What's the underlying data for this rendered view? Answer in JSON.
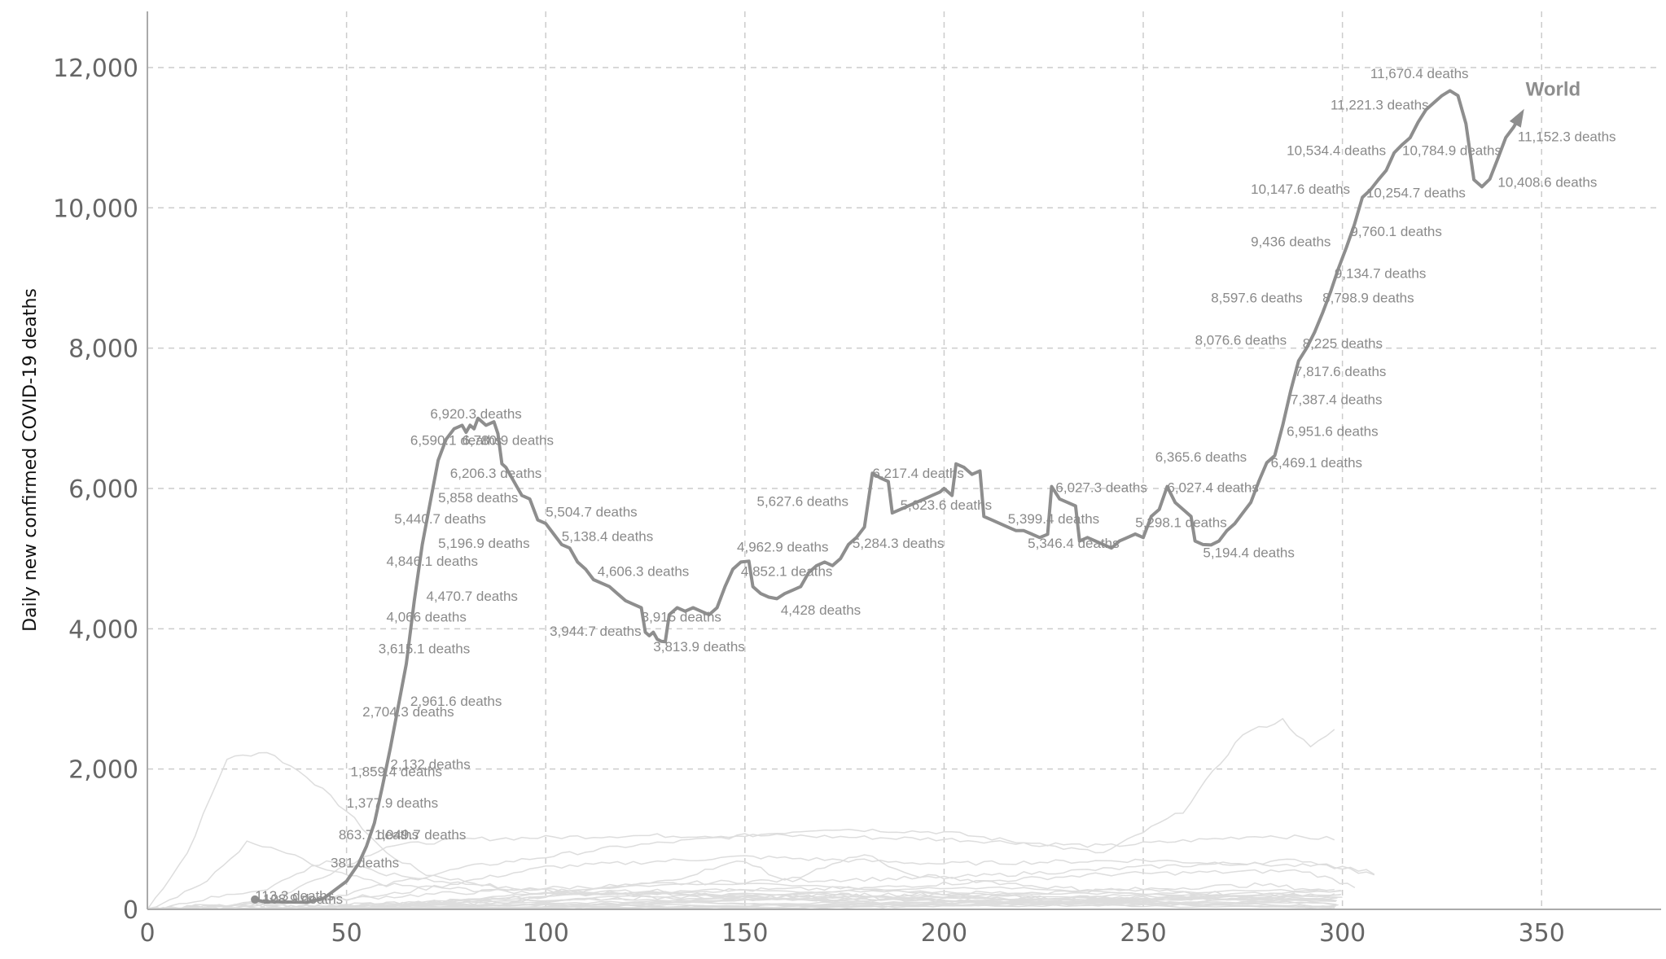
{
  "chart_data": {
    "type": "line",
    "title": "",
    "xlabel": "",
    "ylabel": "Daily new confirmed COVID-19 deaths",
    "xlim": [
      0,
      380
    ],
    "ylim": [
      0,
      12800
    ],
    "x_ticks": [
      0,
      50,
      100,
      150,
      200,
      250,
      300,
      350
    ],
    "x_tick_labels": [
      "0",
      "50",
      "100",
      "150",
      "200",
      "250",
      "300",
      "350"
    ],
    "y_ticks": [
      0,
      2000,
      4000,
      6000,
      8000,
      10000,
      12000
    ],
    "y_tick_labels": [
      "0",
      "2,000",
      "4,000",
      "6,000",
      "8,000",
      "10,000",
      "12,000"
    ],
    "grid": true,
    "series": [
      {
        "name": "World",
        "color": "#8e8e8e",
        "points": [
          [
            27,
            140
          ],
          [
            29,
            110
          ],
          [
            40,
            100
          ],
          [
            44,
            150
          ],
          [
            46,
            230
          ],
          [
            50,
            400
          ],
          [
            53,
            650
          ],
          [
            55,
            900
          ],
          [
            57,
            1230
          ],
          [
            59,
            1750
          ],
          [
            61,
            2300
          ],
          [
            63,
            2900
          ],
          [
            65,
            3500
          ],
          [
            67,
            4400
          ],
          [
            69,
            5200
          ],
          [
            71,
            5800
          ],
          [
            73,
            6400
          ],
          [
            75,
            6700
          ],
          [
            77,
            6850
          ],
          [
            79,
            6900
          ],
          [
            80,
            6800
          ],
          [
            81,
            6900
          ],
          [
            82,
            6850
          ],
          [
            83,
            7000
          ],
          [
            85,
            6900
          ],
          [
            87,
            6950
          ],
          [
            88,
            6780
          ],
          [
            89,
            6350
          ],
          [
            90,
            6300
          ],
          [
            92,
            6100
          ],
          [
            94,
            5900
          ],
          [
            96,
            5850
          ],
          [
            98,
            5550
          ],
          [
            100,
            5500
          ],
          [
            102,
            5350
          ],
          [
            104,
            5200
          ],
          [
            106,
            5150
          ],
          [
            108,
            4950
          ],
          [
            110,
            4850
          ],
          [
            112,
            4700
          ],
          [
            114,
            4650
          ],
          [
            116,
            4600
          ],
          [
            118,
            4500
          ],
          [
            120,
            4400
          ],
          [
            122,
            4350
          ],
          [
            124,
            4300
          ],
          [
            125,
            3950
          ],
          [
            126,
            3900
          ],
          [
            127,
            3950
          ],
          [
            128,
            3850
          ],
          [
            129,
            3820
          ],
          [
            130,
            3814
          ],
          [
            131,
            4200
          ],
          [
            133,
            4300
          ],
          [
            135,
            4250
          ],
          [
            137,
            4300
          ],
          [
            139,
            4250
          ],
          [
            141,
            4200
          ],
          [
            143,
            4300
          ],
          [
            145,
            4600
          ],
          [
            147,
            4850
          ],
          [
            149,
            4950
          ],
          [
            151,
            4963
          ],
          [
            152,
            4600
          ],
          [
            154,
            4500
          ],
          [
            156,
            4450
          ],
          [
            158,
            4428
          ],
          [
            160,
            4500
          ],
          [
            162,
            4550
          ],
          [
            164,
            4600
          ],
          [
            166,
            4800
          ],
          [
            168,
            4900
          ],
          [
            170,
            4950
          ],
          [
            172,
            4900
          ],
          [
            174,
            5000
          ],
          [
            176,
            5200
          ],
          [
            178,
            5300
          ],
          [
            180,
            5450
          ],
          [
            182,
            6217
          ],
          [
            184,
            6150
          ],
          [
            186,
            6100
          ],
          [
            187,
            5650
          ],
          [
            189,
            5700
          ],
          [
            191,
            5750
          ],
          [
            193,
            5800
          ],
          [
            195,
            5850
          ],
          [
            197,
            5900
          ],
          [
            199,
            5950
          ],
          [
            200,
            6000
          ],
          [
            202,
            5900
          ],
          [
            203,
            6350
          ],
          [
            205,
            6300
          ],
          [
            207,
            6200
          ],
          [
            209,
            6250
          ],
          [
            210,
            5600
          ],
          [
            212,
            5550
          ],
          [
            214,
            5500
          ],
          [
            216,
            5450
          ],
          [
            218,
            5400
          ],
          [
            220,
            5399
          ],
          [
            222,
            5350
          ],
          [
            224,
            5300
          ],
          [
            226,
            5346
          ],
          [
            227,
            6027
          ],
          [
            229,
            5850
          ],
          [
            231,
            5800
          ],
          [
            233,
            5750
          ],
          [
            234,
            5250
          ],
          [
            236,
            5300
          ],
          [
            238,
            5250
          ],
          [
            240,
            5200
          ],
          [
            242,
            5150
          ],
          [
            244,
            5250
          ],
          [
            246,
            5300
          ],
          [
            248,
            5350
          ],
          [
            250,
            5300
          ],
          [
            252,
            5600
          ],
          [
            254,
            5700
          ],
          [
            256,
            6027
          ],
          [
            258,
            5800
          ],
          [
            260,
            5700
          ],
          [
            262,
            5600
          ],
          [
            263,
            5250
          ],
          [
            265,
            5200
          ],
          [
            267,
            5194
          ],
          [
            269,
            5250
          ],
          [
            271,
            5400
          ],
          [
            273,
            5500
          ],
          [
            275,
            5650
          ],
          [
            277,
            5800
          ],
          [
            279,
            6100
          ],
          [
            281,
            6366
          ],
          [
            283,
            6469
          ],
          [
            285,
            6900
          ],
          [
            287,
            7387
          ],
          [
            289,
            7818
          ],
          [
            291,
            8000
          ],
          [
            293,
            8225
          ],
          [
            295,
            8500
          ],
          [
            297,
            8800
          ],
          [
            299,
            9135
          ],
          [
            301,
            9436
          ],
          [
            303,
            9760
          ],
          [
            305,
            10148
          ],
          [
            307,
            10255
          ],
          [
            309,
            10400
          ],
          [
            311,
            10534
          ],
          [
            313,
            10785
          ],
          [
            315,
            10900
          ],
          [
            317,
            11000
          ],
          [
            319,
            11221
          ],
          [
            321,
            11400
          ],
          [
            323,
            11500
          ],
          [
            325,
            11600
          ],
          [
            327,
            11670
          ],
          [
            329,
            11600
          ],
          [
            331,
            11200
          ],
          [
            333,
            10400
          ],
          [
            335,
            10300
          ],
          [
            337,
            10409
          ],
          [
            339,
            10700
          ],
          [
            341,
            11000
          ],
          [
            343,
            11152
          ],
          [
            345,
            11350
          ]
        ]
      }
    ],
    "annotations": [
      {
        "text": "113.3 deaths",
        "x": 27,
        "y": 130
      },
      {
        "text": "108.9 deaths",
        "x": 29,
        "y": 80
      },
      {
        "text": "381 deaths",
        "x": 46,
        "y": 600
      },
      {
        "text": "863.7 deaths",
        "x": 48,
        "y": 1000
      },
      {
        "text": "1,049.7 deaths",
        "x": 57,
        "y": 1000
      },
      {
        "text": "1,377.9 deaths",
        "x": 50,
        "y": 1450
      },
      {
        "text": "1,859.4 deaths",
        "x": 51,
        "y": 1900
      },
      {
        "text": "2,132 deaths",
        "x": 61,
        "y": 2000
      },
      {
        "text": "2,704.3 deaths",
        "x": 54,
        "y": 2750
      },
      {
        "text": "2,961.6 deaths",
        "x": 66,
        "y": 2900
      },
      {
        "text": "3,615.1 deaths",
        "x": 58,
        "y": 3650
      },
      {
        "text": "4,066 deaths",
        "x": 60,
        "y": 4100
      },
      {
        "text": "4,470.7 deaths",
        "x": 70,
        "y": 4400
      },
      {
        "text": "4,846.1 deaths",
        "x": 60,
        "y": 4900
      },
      {
        "text": "5,196.9 deaths",
        "x": 73,
        "y": 5150
      },
      {
        "text": "5,440.7 deaths",
        "x": 62,
        "y": 5500
      },
      {
        "text": "5,858 deaths",
        "x": 73,
        "y": 5800
      },
      {
        "text": "6,206.3 deaths",
        "x": 76,
        "y": 6150
      },
      {
        "text": "6,590.1 deaths",
        "x": 66,
        "y": 6620
      },
      {
        "text": "6,780.9 deaths",
        "x": 79,
        "y": 6620
      },
      {
        "text": "6,920.3 deaths",
        "x": 71,
        "y": 7000
      },
      {
        "text": "5,504.7 deaths",
        "x": 100,
        "y": 5600
      },
      {
        "text": "5,138.4 deaths",
        "x": 104,
        "y": 5250
      },
      {
        "text": "4,606.3 deaths",
        "x": 113,
        "y": 4750
      },
      {
        "text": "3,944.7 deaths",
        "x": 101,
        "y": 3900
      },
      {
        "text": "3,915 deaths",
        "x": 124,
        "y": 4100
      },
      {
        "text": "3,813.9 deaths",
        "x": 127,
        "y": 3680
      },
      {
        "text": "4,962.9 deaths",
        "x": 148,
        "y": 5100
      },
      {
        "text": "4,852.1 deaths",
        "x": 149,
        "y": 4750
      },
      {
        "text": "4,428 deaths",
        "x": 159,
        "y": 4200
      },
      {
        "text": "5,627.6 deaths",
        "x": 153,
        "y": 5750
      },
      {
        "text": "5,284.3 deaths",
        "x": 177,
        "y": 5150
      },
      {
        "text": "6,217.4 deaths",
        "x": 182,
        "y": 6150
      },
      {
        "text": "5,623.6 deaths",
        "x": 189,
        "y": 5700
      },
      {
        "text": "5,399.4 deaths",
        "x": 216,
        "y": 5500
      },
      {
        "text": "5,346.4 deaths",
        "x": 221,
        "y": 5150
      },
      {
        "text": "6,027.3 deaths",
        "x": 228,
        "y": 5950
      },
      {
        "text": "6,365.6 deaths",
        "x": 253,
        "y": 6380
      },
      {
        "text": "6,027.4 deaths",
        "x": 256,
        "y": 5950
      },
      {
        "text": "5,298.1 deaths",
        "x": 248,
        "y": 5450
      },
      {
        "text": "5,194.4 deaths",
        "x": 265,
        "y": 5020
      },
      {
        "text": "6,469.1 deaths",
        "x": 282,
        "y": 6300
      },
      {
        "text": "6,951.6 deaths",
        "x": 286,
        "y": 6750
      },
      {
        "text": "7,387.4 deaths",
        "x": 287,
        "y": 7200
      },
      {
        "text": "7,817.6 deaths",
        "x": 288,
        "y": 7600
      },
      {
        "text": "8,076.6 deaths",
        "x": 263,
        "y": 8050
      },
      {
        "text": "8,225 deaths",
        "x": 290,
        "y": 8000
      },
      {
        "text": "8,597.6 deaths",
        "x": 267,
        "y": 8650
      },
      {
        "text": "8,798.9 deaths",
        "x": 295,
        "y": 8650
      },
      {
        "text": "9,134.7 deaths",
        "x": 298,
        "y": 9000
      },
      {
        "text": "9,436 deaths",
        "x": 277,
        "y": 9450
      },
      {
        "text": "9,760.1 deaths",
        "x": 302,
        "y": 9600
      },
      {
        "text": "10,147.6 deaths",
        "x": 277,
        "y": 10200
      },
      {
        "text": "10,254.7 deaths",
        "x": 306,
        "y": 10150
      },
      {
        "text": "10,534.4 deaths",
        "x": 286,
        "y": 10750
      },
      {
        "text": "10,784.9 deaths",
        "x": 315,
        "y": 10750
      },
      {
        "text": "11,221.3 deaths",
        "x": 297,
        "y": 11400
      },
      {
        "text": "11,670.4 deaths",
        "x": 307,
        "y": 11850
      },
      {
        "text": "10,408.6 deaths",
        "x": 339,
        "y": 10300
      },
      {
        "text": "11,152.3 deaths",
        "x": 344,
        "y": 10950
      }
    ],
    "series_label": "World",
    "series_label_pos": [
      346,
      11600
    ]
  }
}
